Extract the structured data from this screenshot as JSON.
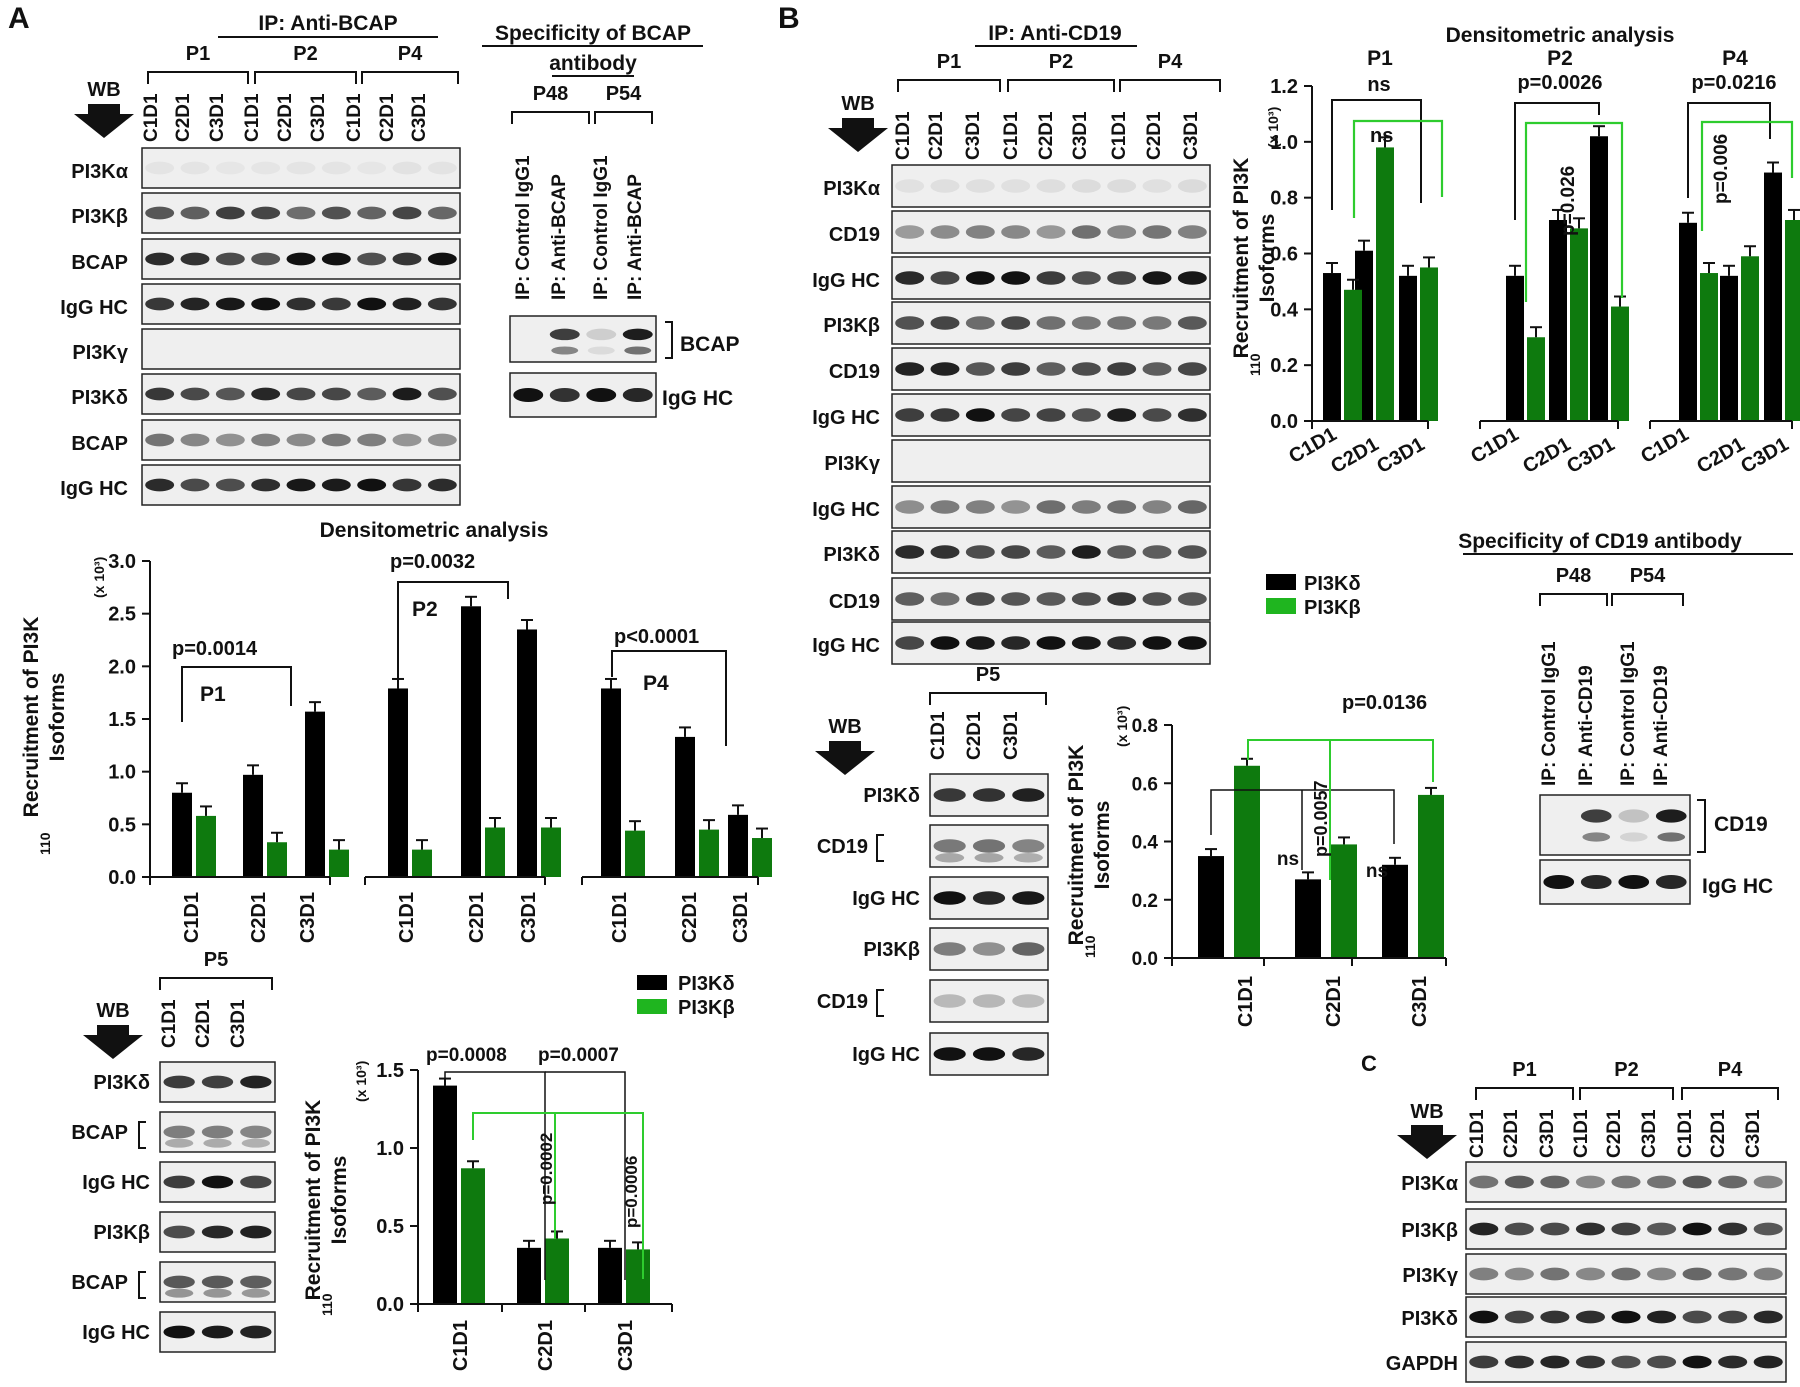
{
  "lane_labels": [
    "C1D1",
    "C2D1",
    "C3D1"
  ],
  "panel_A": {
    "letter": "A",
    "ip_title": "IP: Anti-BCAP",
    "wb": "WB",
    "groups": [
      "P1",
      "P2",
      "P4"
    ],
    "blot_rows": [
      "PI3Kα",
      "PI3Kβ",
      "BCAP",
      "IgG HC",
      "PI3Kγ",
      "PI3Kδ",
      "BCAP",
      "IgG HC"
    ],
    "specificity": {
      "title_line1": "Specificity of BCAP",
      "title_line2": "antibody",
      "groups": [
        "P48",
        "P54"
      ],
      "lanes": [
        "IP: Control IgG1",
        "IP: Anti-BCAP",
        "IP: Control IgG1",
        "IP: Anti-BCAP"
      ],
      "rows": [
        "BCAP",
        "IgG HC"
      ]
    },
    "densitometric_title": "Densitometric analysis",
    "p5": {
      "group": "P5",
      "wb": "WB",
      "rows": [
        "PI3Kδ",
        "BCAP",
        "IgG HC",
        "PI3Kβ",
        "BCAP",
        "IgG HC"
      ]
    },
    "legend": [
      "PI3Kδ",
      "PI3Kβ"
    ]
  },
  "panel_B": {
    "letter": "B",
    "ip_title": "IP: Anti-CD19",
    "wb": "WB",
    "groups": [
      "P1",
      "P2",
      "P4"
    ],
    "blot_rows": [
      "PI3Kα",
      "CD19",
      "IgG HC",
      "PI3Kβ",
      "CD19",
      "IgG HC",
      "PI3Kγ",
      "IgG HC",
      "PI3Kδ",
      "CD19",
      "IgG HC"
    ],
    "densitometric_title": "Densitometric analysis",
    "legend": [
      "PI3Kδ",
      "PI3Kβ"
    ],
    "p5": {
      "group": "P5",
      "wb": "WB",
      "rows": [
        "PI3Kδ",
        "CD19",
        "IgG HC",
        "PI3Kβ",
        "CD19",
        "IgG HC"
      ]
    },
    "specificity": {
      "title": "Specificity of CD19 antibody",
      "groups": [
        "P48",
        "P54"
      ],
      "lanes": [
        "IP: Control IgG1",
        "IP: Anti-CD19",
        "IP: Control IgG1",
        "IP: Anti-CD19"
      ],
      "rows": [
        "CD19",
        "IgG HC"
      ]
    }
  },
  "panel_C": {
    "letter": "C",
    "wb": "WB",
    "groups": [
      "P1",
      "P2",
      "P4"
    ],
    "rows": [
      "PI3Kα",
      "PI3Kβ",
      "PI3Kγ",
      "PI3Kδ",
      "GAPDH"
    ]
  },
  "colors": {
    "delta": "#000000",
    "beta": "#0e7a0e",
    "beta_light": "#1fb51f",
    "sig_green": "#2ecc2e",
    "red": "#e02020"
  },
  "chart_data": [
    {
      "id": "A_main",
      "type": "bar",
      "ylabel_main": "Recruitment of PI3K",
      "ylabel_sub": "110",
      "ylabel_line2": "Isoforms",
      "ylabel_units": "(x 10³)",
      "ylim": [
        0,
        3.0
      ],
      "yticks": [
        "0.0",
        "0.5",
        "1.0",
        "1.5",
        "2.0",
        "2.5",
        "3.0"
      ],
      "groups": [
        "P1",
        "P2",
        "P4"
      ],
      "categories": [
        "C1D1",
        "C2D1",
        "C3D1"
      ],
      "series": [
        {
          "name": "PI3Kδ",
          "values": [
            [
              0.8,
              0.97,
              1.57
            ],
            [
              1.79,
              2.57,
              2.35
            ],
            [
              1.79,
              1.33,
              0.59
            ]
          ]
        },
        {
          "name": "PI3Kβ",
          "values": [
            [
              0.58,
              0.33,
              0.26
            ],
            [
              0.26,
              0.47,
              0.47
            ],
            [
              0.44,
              0.45,
              0.37
            ]
          ]
        }
      ],
      "annotations": [
        "p=0.0014",
        "p=0.0032",
        "p<0.0001"
      ]
    },
    {
      "id": "A_p5",
      "type": "bar",
      "ylabel_main": "Recruitment of PI3K",
      "ylabel_sub": "110",
      "ylabel_line2": "Isoforms",
      "ylabel_units": "(x 10³)",
      "ylim": [
        0,
        1.5
      ],
      "yticks": [
        "0.0",
        "0.5",
        "1.0",
        "1.5"
      ],
      "categories": [
        "C1D1",
        "C2D1",
        "C3D1"
      ],
      "series": [
        {
          "name": "PI3Kδ",
          "values": [
            1.4,
            0.36,
            0.36
          ]
        },
        {
          "name": "PI3Kβ",
          "values": [
            0.87,
            0.42,
            0.35
          ]
        }
      ],
      "annotations": [
        "p=0.0008",
        "p=0.0007",
        "p=0.0002",
        "p=0.0006"
      ]
    },
    {
      "id": "B_main",
      "type": "bar",
      "ylabel_main": "Recruitment of PI3K",
      "ylabel_sub": "110",
      "ylabel_line2": "Isoforms",
      "ylabel_units": "(x 10³)",
      "ylim": [
        0,
        1.2
      ],
      "yticks": [
        "0.0",
        "0.2",
        "0.4",
        "0.6",
        "0.8",
        "1.0",
        "1.2"
      ],
      "groups": [
        "P1",
        "P2",
        "P4"
      ],
      "categories": [
        "C1D1",
        "C2D1",
        "C3D1"
      ],
      "series": [
        {
          "name": "PI3Kδ",
          "values": [
            [
              0.53,
              0.61,
              0.52
            ],
            [
              0.52,
              0.72,
              1.02
            ],
            [
              0.71,
              0.52,
              0.89
            ]
          ]
        },
        {
          "name": "PI3Kβ",
          "values": [
            [
              0.47,
              0.98,
              0.55
            ],
            [
              0.3,
              0.69,
              0.41
            ],
            [
              0.53,
              0.59,
              0.72
            ]
          ]
        }
      ],
      "annotations": [
        "ns",
        "ns",
        "p=0.0026",
        "p=0.026",
        "p=0.0216",
        "p=0.006"
      ]
    },
    {
      "id": "B_p5",
      "type": "bar",
      "ylabel_main": "Recruitment of PI3K",
      "ylabel_sub": "110",
      "ylabel_line2": "Isoforms",
      "ylabel_units": "(x 10³)",
      "ylim": [
        0,
        0.8
      ],
      "yticks": [
        "0.0",
        "0.2",
        "0.4",
        "0.6",
        "0.8"
      ],
      "categories": [
        "C1D1",
        "C2D1",
        "C3D1"
      ],
      "series": [
        {
          "name": "PI3Kδ",
          "values": [
            0.35,
            0.27,
            0.32
          ]
        },
        {
          "name": "PI3Kβ",
          "values": [
            0.66,
            0.39,
            0.56
          ]
        }
      ],
      "annotations": [
        "p=0.0136",
        "p=0.0057",
        "ns",
        "ns"
      ]
    }
  ]
}
